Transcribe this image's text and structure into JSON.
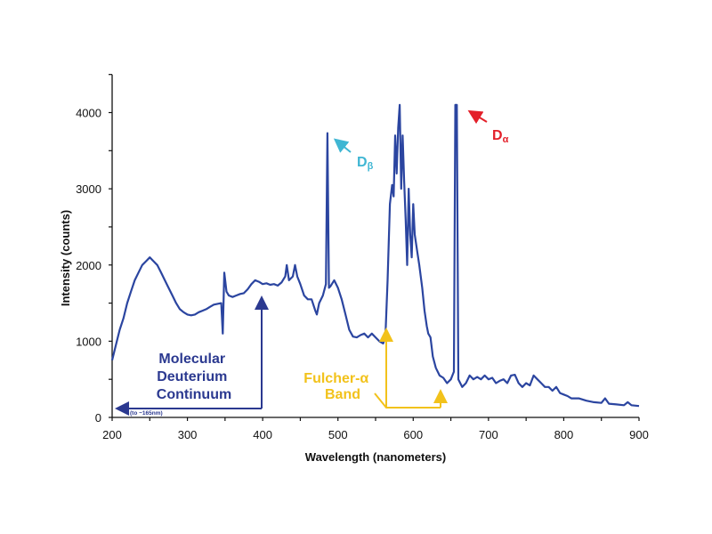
{
  "chart_data": {
    "type": "line",
    "title": "",
    "xlabel": "Wavelength (nanometers)",
    "ylabel": "Intensity (counts)",
    "xlim": [
      200,
      900
    ],
    "ylim": [
      0,
      4500
    ],
    "x_ticks": [
      "200",
      "300",
      "400",
      "500",
      "600",
      "700",
      "800",
      "900"
    ],
    "y_ticks": [
      "0",
      "1000",
      "2000",
      "3000",
      "4000"
    ],
    "grid": false,
    "colors": {
      "series": "#2b45a0",
      "continuum": "#2b3990",
      "fulcher": "#f2c21b",
      "d_beta": "#3fb6d3",
      "d_alpha": "#e3202a"
    },
    "series": [
      {
        "x": [
          200,
          205,
          210,
          215,
          220,
          225,
          230,
          235,
          240,
          245,
          250,
          255,
          260,
          265,
          270,
          275,
          280,
          285,
          290,
          295,
          300,
          305,
          310,
          315,
          320,
          325,
          330,
          335,
          340,
          345,
          347,
          349,
          352,
          355,
          360,
          365,
          370,
          375,
          380,
          385,
          390,
          395,
          400,
          405,
          410,
          415,
          420,
          425,
          430,
          432,
          435,
          440,
          443,
          446,
          450,
          455,
          460,
          465,
          470,
          472,
          475,
          480,
          484,
          486,
          488,
          490,
          495,
          500,
          505,
          510,
          515,
          520,
          525,
          530,
          535,
          540,
          545,
          550,
          555,
          560,
          563,
          566,
          569,
          572,
          574,
          576,
          578,
          580,
          582,
          584,
          586,
          588,
          590,
          592,
          594,
          596,
          598,
          600,
          602,
          605,
          608,
          612,
          615,
          618,
          620,
          623,
          626,
          630,
          635,
          640,
          645,
          650,
          654,
          656,
          658,
          660,
          665,
          670,
          675,
          680,
          685,
          690,
          695,
          700,
          705,
          710,
          715,
          720,
          725,
          730,
          735,
          740,
          745,
          750,
          755,
          760,
          765,
          770,
          775,
          780,
          785,
          790,
          795,
          800,
          805,
          810,
          820,
          830,
          840,
          850,
          855,
          860,
          870,
          880,
          885,
          890,
          900
        ],
        "y": [
          750,
          950,
          1150,
          1300,
          1500,
          1650,
          1800,
          1900,
          2000,
          2050,
          2100,
          2050,
          2000,
          1900,
          1800,
          1700,
          1600,
          1500,
          1420,
          1380,
          1350,
          1340,
          1350,
          1380,
          1400,
          1420,
          1450,
          1480,
          1490,
          1500,
          1100,
          1900,
          1650,
          1600,
          1580,
          1600,
          1620,
          1630,
          1680,
          1750,
          1800,
          1780,
          1750,
          1760,
          1740,
          1750,
          1730,
          1770,
          1850,
          2000,
          1800,
          1850,
          2000,
          1850,
          1750,
          1600,
          1550,
          1550,
          1400,
          1350,
          1500,
          1600,
          1750,
          3730,
          1700,
          1720,
          1800,
          1700,
          1550,
          1350,
          1150,
          1060,
          1050,
          1080,
          1100,
          1050,
          1100,
          1050,
          1000,
          970,
          1050,
          1800,
          2800,
          3050,
          2900,
          3700,
          3200,
          3800,
          4100,
          3000,
          3700,
          3100,
          2600,
          2000,
          3000,
          2400,
          2100,
          2800,
          2400,
          2200,
          2000,
          1700,
          1400,
          1200,
          1100,
          1050,
          800,
          650,
          550,
          520,
          450,
          500,
          600,
          4100,
          4100,
          500,
          400,
          450,
          550,
          500,
          530,
          500,
          550,
          500,
          520,
          450,
          480,
          500,
          450,
          550,
          560,
          450,
          400,
          450,
          420,
          550,
          500,
          450,
          400,
          400,
          350,
          400,
          320,
          300,
          280,
          250,
          250,
          220,
          200,
          190,
          250,
          180,
          170,
          160,
          200,
          160,
          150
        ]
      }
    ],
    "annotations": {
      "d_beta": {
        "main": "D",
        "sub": "β"
      },
      "d_alpha": {
        "main": "D",
        "sub": "α"
      },
      "continuum": [
        "Molecular",
        "Deuterium",
        "Continuum"
      ],
      "continuum_note": "(to ~165nm)",
      "fulcher": [
        "Fulcher-α",
        "Band"
      ]
    }
  }
}
